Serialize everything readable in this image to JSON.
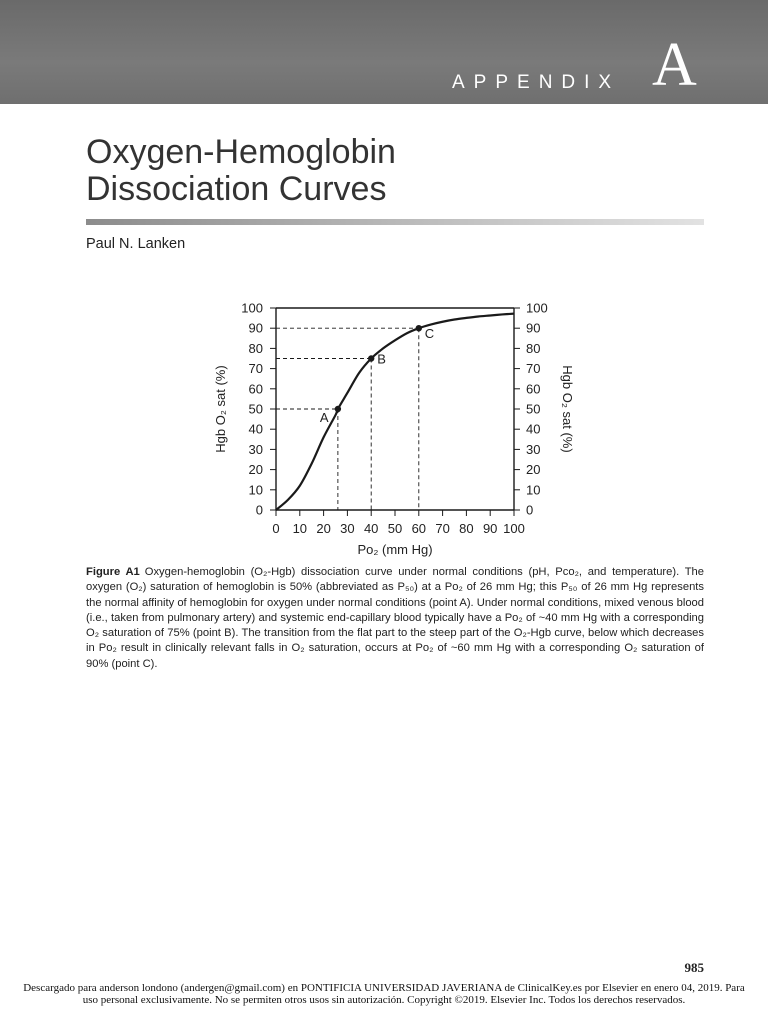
{
  "header": {
    "appendix_word": "APPENDIX",
    "appendix_letter": "A",
    "banner_color": "#6f6f6f"
  },
  "article": {
    "title_line1": "Oxygen-Hemoglobin",
    "title_line2": "Dissociation  Curves",
    "author": "Paul N. Lanken"
  },
  "chart_data": {
    "type": "line",
    "xlabel": "Po₂ (mm Hg)",
    "ylabel_left": "Hgb O₂ sat (%)",
    "ylabel_right": "Hgb O₂ sat (%)",
    "xlim": [
      0,
      100
    ],
    "ylim": [
      0,
      100
    ],
    "x_ticks": [
      "0",
      "10",
      "20",
      "30",
      "40",
      "50",
      "60",
      "70",
      "80",
      "90",
      "100"
    ],
    "y_ticks": [
      "0",
      "10",
      "20",
      "30",
      "40",
      "50",
      "60",
      "70",
      "80",
      "90",
      "100"
    ],
    "x_tick_values": [
      0,
      10,
      20,
      30,
      40,
      50,
      60,
      70,
      80,
      90,
      100
    ],
    "y_tick_values": [
      0,
      10,
      20,
      30,
      40,
      50,
      60,
      70,
      80,
      90,
      100
    ],
    "grid": false,
    "series": [
      {
        "x": [
          0,
          5,
          10,
          15,
          20,
          25,
          26,
          30,
          35,
          40,
          45,
          50,
          55,
          60,
          65,
          70,
          75,
          80,
          85,
          90,
          95,
          100
        ],
        "y": [
          0,
          5,
          12,
          23,
          36,
          47,
          50,
          58,
          68,
          75,
          80,
          84,
          87.5,
          90,
          91.8,
          93.2,
          94.3,
          95.1,
          95.8,
          96.3,
          96.8,
          97.2
        ]
      }
    ],
    "points": [
      {
        "label": "A",
        "x": 26,
        "y": 50
      },
      {
        "label": "B",
        "x": 40,
        "y": 75
      },
      {
        "label": "C",
        "x": 60,
        "y": 90
      }
    ],
    "line_color": "#1a1a1a"
  },
  "caption": {
    "label": "Figure A1",
    "text": "Oxygen-hemoglobin (O₂-Hgb) dissociation curve under normal conditions (pH, Pco₂, and temperature). The oxygen (O₂) saturation of hemoglobin is 50% (abbreviated as P₅₀) at a Po₂ of 26 mm Hg; this P₅₀ of 26 mm Hg represents the normal affinity of hemoglobin for oxygen under normal conditions (point A). Under normal conditions, mixed venous blood (i.e., taken from pulmonary artery) and systemic end-capillary blood typically have a Po₂ of ~40 mm Hg with a corresponding O₂ saturation of 75% (point B). The transition from the flat part to the steep part of the O₂-Hgb curve, below which decreases in Po₂ result in clinically relevant falls in O₂ saturation, occurs at Po₂ of ~60 mm Hg with a corresponding O₂ saturation of 90% (point C)."
  },
  "page_number": "985",
  "footer": {
    "text": "Descargado para anderson londono (andergen@gmail.com) en PONTIFICIA UNIVERSIDAD JAVERIANA de ClinicalKey.es por Elsevier en enero 04, 2019. Para uso personal exclusivamente. No se permiten otros usos sin autorización. Copyright ©2019. Elsevier Inc. Todos los derechos reservados."
  }
}
